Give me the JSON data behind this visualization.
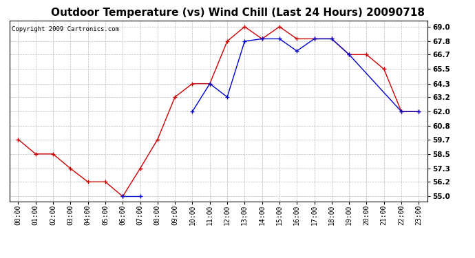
{
  "title": "Outdoor Temperature (vs) Wind Chill (Last 24 Hours) 20090718",
  "copyright": "Copyright 2009 Cartronics.com",
  "x_labels": [
    "00:00",
    "01:00",
    "02:00",
    "03:00",
    "04:00",
    "05:00",
    "06:00",
    "07:00",
    "08:00",
    "09:00",
    "10:00",
    "11:00",
    "12:00",
    "13:00",
    "14:00",
    "15:00",
    "16:00",
    "17:00",
    "18:00",
    "19:00",
    "20:00",
    "21:00",
    "22:00",
    "23:00"
  ],
  "red_data": [
    59.7,
    58.5,
    58.5,
    57.3,
    56.2,
    56.2,
    55.0,
    57.3,
    59.7,
    63.2,
    64.3,
    64.3,
    67.8,
    69.0,
    68.0,
    69.0,
    68.0,
    68.0,
    68.0,
    66.7,
    66.7,
    65.5,
    62.0,
    62.0
  ],
  "blue_data": [
    null,
    null,
    null,
    null,
    null,
    null,
    55.0,
    55.0,
    null,
    null,
    62.0,
    64.3,
    63.2,
    67.8,
    68.0,
    68.0,
    67.0,
    68.0,
    68.0,
    66.7,
    null,
    null,
    62.0,
    62.0
  ],
  "red_color": "#cc0000",
  "blue_color": "#0000cc",
  "bg_color": "#ffffff",
  "grid_color": "#bbbbbb",
  "y_ticks": [
    55.0,
    56.2,
    57.3,
    58.5,
    59.7,
    60.8,
    62.0,
    63.2,
    64.3,
    65.5,
    66.7,
    67.8,
    69.0
  ],
  "ylim": [
    54.6,
    69.5
  ],
  "title_fontsize": 11,
  "copyright_fontsize": 6.5,
  "tick_fontsize": 7,
  "ytick_fontsize": 7.5
}
